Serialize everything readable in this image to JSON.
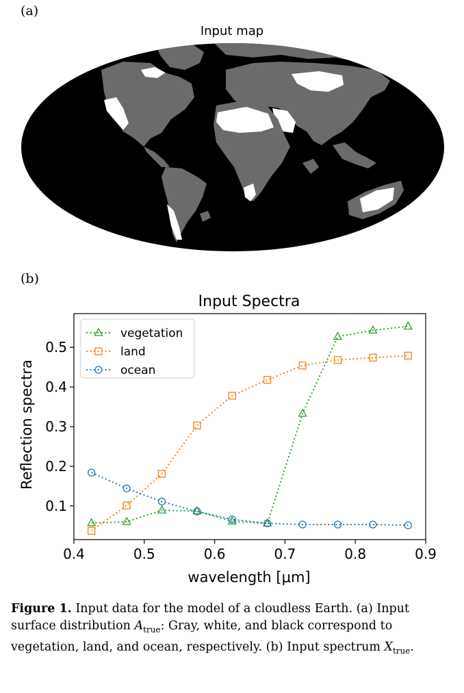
{
  "panel_a": {
    "label": "(a)",
    "title": "Input map",
    "colors": {
      "ocean": "#000000",
      "vegetation": "#6b6b6b",
      "land": "#ffffff"
    }
  },
  "panel_b": {
    "label": "(b)"
  },
  "chart_data": {
    "type": "line",
    "title": "Input Spectra",
    "xlabel": "wavelength [μm]",
    "ylabel": "Reflection spectra",
    "xlim": [
      0.4,
      0.9
    ],
    "ylim": [
      0.015,
      0.585
    ],
    "xticks": [
      "0.4",
      "0.5",
      "0.6",
      "0.7",
      "0.8",
      "0.9"
    ],
    "yticks": [
      "0.1",
      "0.2",
      "0.3",
      "0.4",
      "0.5"
    ],
    "legend_position": "top-left",
    "x": [
      0.425,
      0.475,
      0.525,
      0.575,
      0.625,
      0.675,
      0.725,
      0.775,
      0.825,
      0.875
    ],
    "series": [
      {
        "name": "vegetation",
        "marker": "triangle",
        "color": "#2ca02c",
        "values": [
          0.057,
          0.06,
          0.089,
          0.087,
          0.061,
          0.056,
          0.333,
          0.527,
          0.543,
          0.553
        ]
      },
      {
        "name": "land",
        "marker": "square",
        "color": "#ff7f0e",
        "values": [
          0.037,
          0.101,
          0.181,
          0.303,
          0.378,
          0.418,
          0.454,
          0.468,
          0.474,
          0.479
        ]
      },
      {
        "name": "ocean",
        "marker": "circle",
        "color": "#1f77b4",
        "values": [
          0.184,
          0.144,
          0.111,
          0.086,
          0.066,
          0.056,
          0.053,
          0.053,
          0.053,
          0.051
        ]
      }
    ]
  },
  "caption": {
    "label": "Figure 1.",
    "intro": " Input data for the model of a cloudless Earth. (a) Input surface distribution ",
    "a_symbol": "A",
    "a_sub": "true",
    "middle": ": Gray, white, and black correspond to vegetation, land, and ocean, respectively. (b) Input spectrum ",
    "x_symbol": "X",
    "x_sub": "true",
    "end": "."
  }
}
